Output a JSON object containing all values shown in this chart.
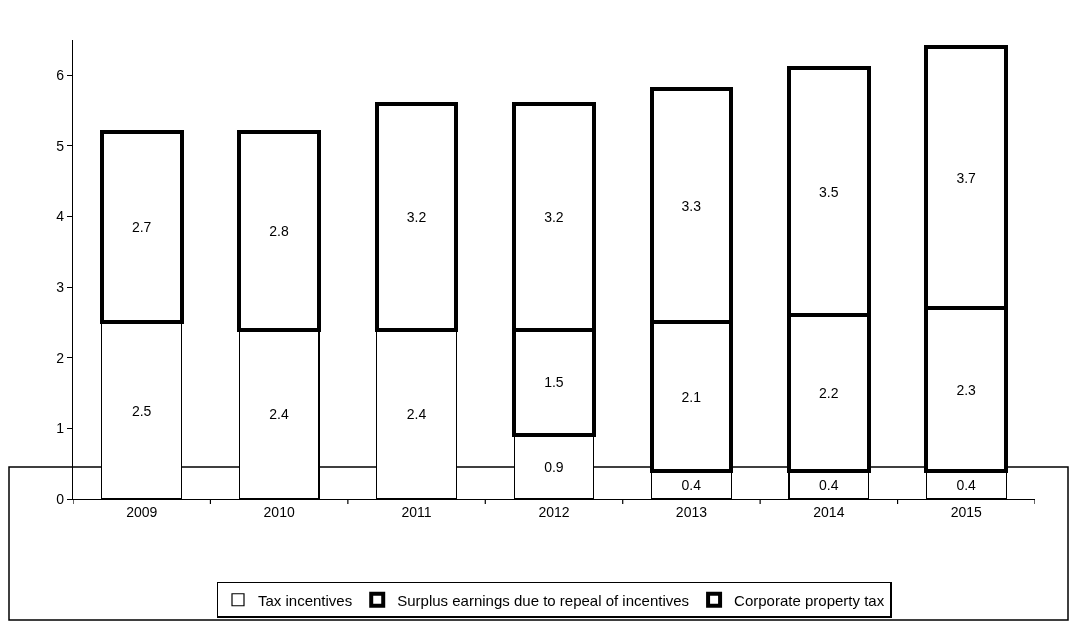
{
  "chart_data": {
    "type": "bar",
    "categories": [
      "2009",
      "2010",
      "2011",
      "2012",
      "2013",
      "2014",
      "2015"
    ],
    "stacked": true,
    "series": [
      {
        "name": "Tax incentives",
        "color": "#ffffff",
        "values": [
          2.5,
          2.4,
          2.4,
          0.9,
          0.4,
          0.4,
          0.4
        ]
      },
      {
        "name": "Surplus earnings due to repeal of incentives",
        "color": "#ffffff",
        "values": [
          null,
          null,
          null,
          1.5,
          2.1,
          2.2,
          2.3
        ]
      },
      {
        "name": "Corporate property tax",
        "color": "#ffffff",
        "values": [
          2.7,
          2.8,
          3.2,
          3.2,
          3.3,
          3.5,
          3.7
        ]
      }
    ],
    "ylim": [
      0,
      6.5
    ],
    "yticks": [
      0,
      1,
      2,
      3,
      4,
      5,
      6
    ],
    "grid": false,
    "legend": "bottom",
    "data_labels": true
  }
}
